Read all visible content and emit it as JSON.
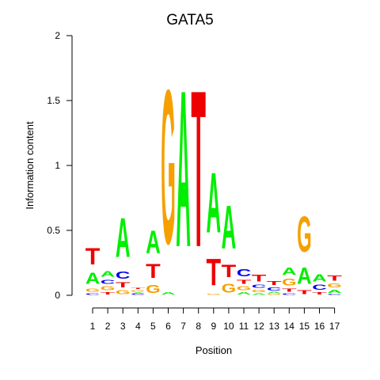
{
  "chart_data": {
    "type": "sequence-logo",
    "title": "GATA5",
    "xlabel": "Position",
    "ylabel": "Information content",
    "ylim": [
      0,
      2
    ],
    "yticks": [
      {
        "value": 0,
        "label": "0"
      },
      {
        "value": 0.5,
        "label": "0.5"
      },
      {
        "value": 1,
        "label": "1"
      },
      {
        "value": 1.5,
        "label": "1.5"
      },
      {
        "value": 2,
        "label": "2"
      }
    ],
    "colors": {
      "A": "#00ee00",
      "C": "#0000ee",
      "G": "#f5a000",
      "T": "#ee0000"
    },
    "positions": [
      {
        "label": "1",
        "stack": [
          {
            "letter": "C",
            "height": 0.02
          },
          {
            "letter": "G",
            "height": 0.04
          },
          {
            "letter": "A",
            "height": 0.14
          },
          {
            "letter": "T",
            "height": 0.2
          }
        ]
      },
      {
        "label": "2",
        "stack": [
          {
            "letter": "T",
            "height": 0.03
          },
          {
            "letter": "G",
            "height": 0.05
          },
          {
            "letter": "C",
            "height": 0.05
          },
          {
            "letter": "A",
            "height": 0.07
          }
        ]
      },
      {
        "label": "3",
        "stack": [
          {
            "letter": "G",
            "height": 0.05
          },
          {
            "letter": "T",
            "height": 0.06
          },
          {
            "letter": "C",
            "height": 0.09
          },
          {
            "letter": "A",
            "height": 0.48
          }
        ]
      },
      {
        "label": "4",
        "stack": [
          {
            "letter": "C",
            "height": 0.01
          },
          {
            "letter": "A",
            "height": 0.015
          },
          {
            "letter": "G",
            "height": 0.02
          },
          {
            "letter": "T",
            "height": 0.015
          }
        ]
      },
      {
        "label": "5",
        "stack": [
          {
            "letter": "G",
            "height": 0.1
          },
          {
            "letter": "T",
            "height": 0.17
          },
          {
            "letter": "A",
            "height": 0.28
          }
        ]
      },
      {
        "label": "6",
        "stack": [
          {
            "letter": "A",
            "height": 0.03
          },
          {
            "letter": "G",
            "height": 1.9
          }
        ]
      },
      {
        "label": "7",
        "stack": [
          {
            "letter": "A",
            "height": 1.93
          }
        ]
      },
      {
        "label": "8",
        "stack": [
          {
            "letter": "T",
            "height": 1.93
          }
        ]
      },
      {
        "label": "9",
        "stack": [
          {
            "letter": "G",
            "height": 0.01
          },
          {
            "letter": "T",
            "height": 0.33
          },
          {
            "letter": "A",
            "height": 0.74
          }
        ]
      },
      {
        "label": "10",
        "stack": [
          {
            "letter": "G",
            "height": 0.11
          },
          {
            "letter": "T",
            "height": 0.15
          },
          {
            "letter": "A",
            "height": 0.53
          }
        ]
      },
      {
        "label": "11",
        "stack": [
          {
            "letter": "A",
            "height": 0.03
          },
          {
            "letter": "G",
            "height": 0.05
          },
          {
            "letter": "T",
            "height": 0.05
          },
          {
            "letter": "C",
            "height": 0.09
          }
        ]
      },
      {
        "label": "12",
        "stack": [
          {
            "letter": "A",
            "height": 0.02
          },
          {
            "letter": "G",
            "height": 0.03
          },
          {
            "letter": "C",
            "height": 0.04
          },
          {
            "letter": "T",
            "height": 0.08
          }
        ]
      },
      {
        "label": "13",
        "stack": [
          {
            "letter": "G",
            "height": 0.01
          },
          {
            "letter": "A",
            "height": 0.02
          },
          {
            "letter": "C",
            "height": 0.04
          },
          {
            "letter": "T",
            "height": 0.05
          }
        ]
      },
      {
        "label": "14",
        "stack": [
          {
            "letter": "C",
            "height": 0.02
          },
          {
            "letter": "T",
            "height": 0.04
          },
          {
            "letter": "G",
            "height": 0.08
          },
          {
            "letter": "A",
            "height": 0.09
          }
        ]
      },
      {
        "label": "15",
        "stack": [
          {
            "letter": "T",
            "height": 0.05
          },
          {
            "letter": "A",
            "height": 0.2
          },
          {
            "letter": "G",
            "height": 0.44
          }
        ]
      },
      {
        "label": "16",
        "stack": [
          {
            "letter": "T",
            "height": 0.03
          },
          {
            "letter": "C",
            "height": 0.06
          },
          {
            "letter": "A",
            "height": 0.09
          }
        ]
      },
      {
        "label": "17",
        "stack": [
          {
            "letter": "C",
            "height": 0.01
          },
          {
            "letter": "A",
            "height": 0.04
          },
          {
            "letter": "G",
            "height": 0.05
          },
          {
            "letter": "T",
            "height": 0.06
          }
        ]
      }
    ]
  }
}
